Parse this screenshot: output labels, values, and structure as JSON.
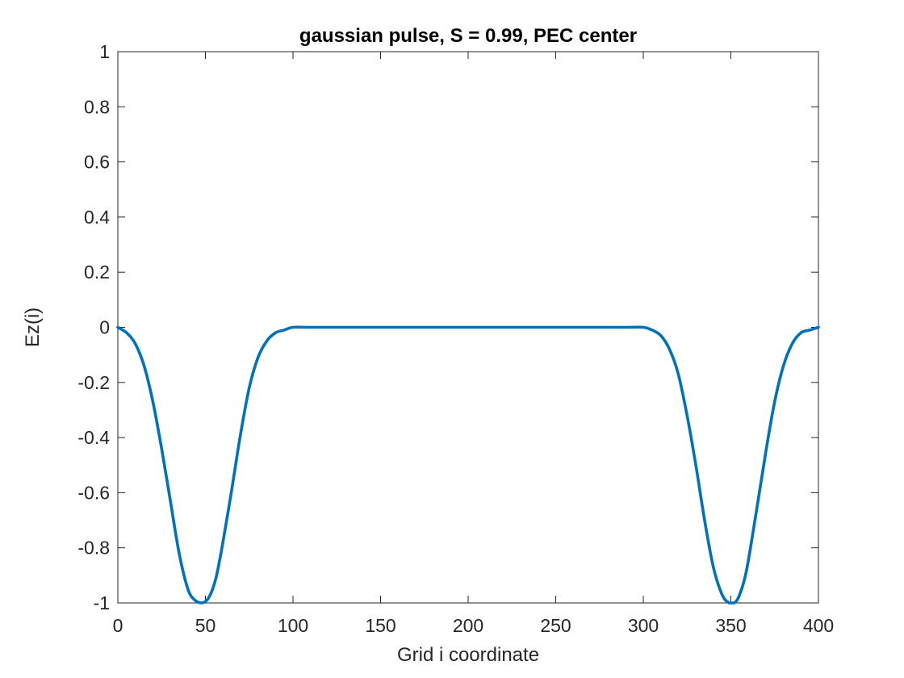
{
  "chart_data": {
    "type": "line",
    "title": "gaussian pulse, S = 0.99, PEC center",
    "xlabel": "Grid i coordinate",
    "ylabel": "Ez(i)",
    "xlim": [
      0,
      400
    ],
    "ylim": [
      -1,
      1
    ],
    "x_ticks": [
      0,
      50,
      100,
      150,
      200,
      250,
      300,
      350,
      400
    ],
    "x_tick_labels": [
      "0",
      "50",
      "100",
      "150",
      "200",
      "250",
      "300",
      "350",
      "400"
    ],
    "y_ticks": [
      1,
      0.8,
      0.6,
      0.4,
      0.2,
      0,
      -0.2,
      -0.4,
      -0.6,
      -0.8,
      -1
    ],
    "y_tick_labels": [
      "1",
      "0.8",
      "0.6",
      "0.4",
      "0.2",
      "0",
      "-0.2",
      "-0.4",
      "-0.6",
      "-0.8",
      "-1"
    ],
    "grid": false,
    "series": [
      {
        "color": "#0072BD",
        "x": [
          0,
          5,
          10,
          15,
          20,
          25,
          30,
          35,
          40,
          44,
          48,
          52,
          56,
          60,
          65,
          70,
          75,
          80,
          85,
          90,
          95,
          100,
          110,
          150,
          200,
          250,
          290,
          300,
          305,
          310,
          315,
          320,
          325,
          330,
          335,
          340,
          345,
          349,
          352,
          355,
          359,
          365,
          370,
          375,
          380,
          385,
          390,
          395,
          400
        ],
        "y": [
          0,
          -0.02,
          -0.06,
          -0.14,
          -0.27,
          -0.44,
          -0.63,
          -0.82,
          -0.95,
          -0.99,
          -1.0,
          -0.98,
          -0.91,
          -0.78,
          -0.59,
          -0.39,
          -0.22,
          -0.11,
          -0.05,
          -0.02,
          -0.01,
          0,
          0,
          0,
          0,
          0,
          0,
          0,
          -0.01,
          -0.03,
          -0.08,
          -0.17,
          -0.32,
          -0.5,
          -0.7,
          -0.87,
          -0.97,
          -1.0,
          -1.0,
          -0.97,
          -0.88,
          -0.65,
          -0.45,
          -0.27,
          -0.14,
          -0.06,
          -0.02,
          -0.01,
          0
        ]
      }
    ]
  }
}
